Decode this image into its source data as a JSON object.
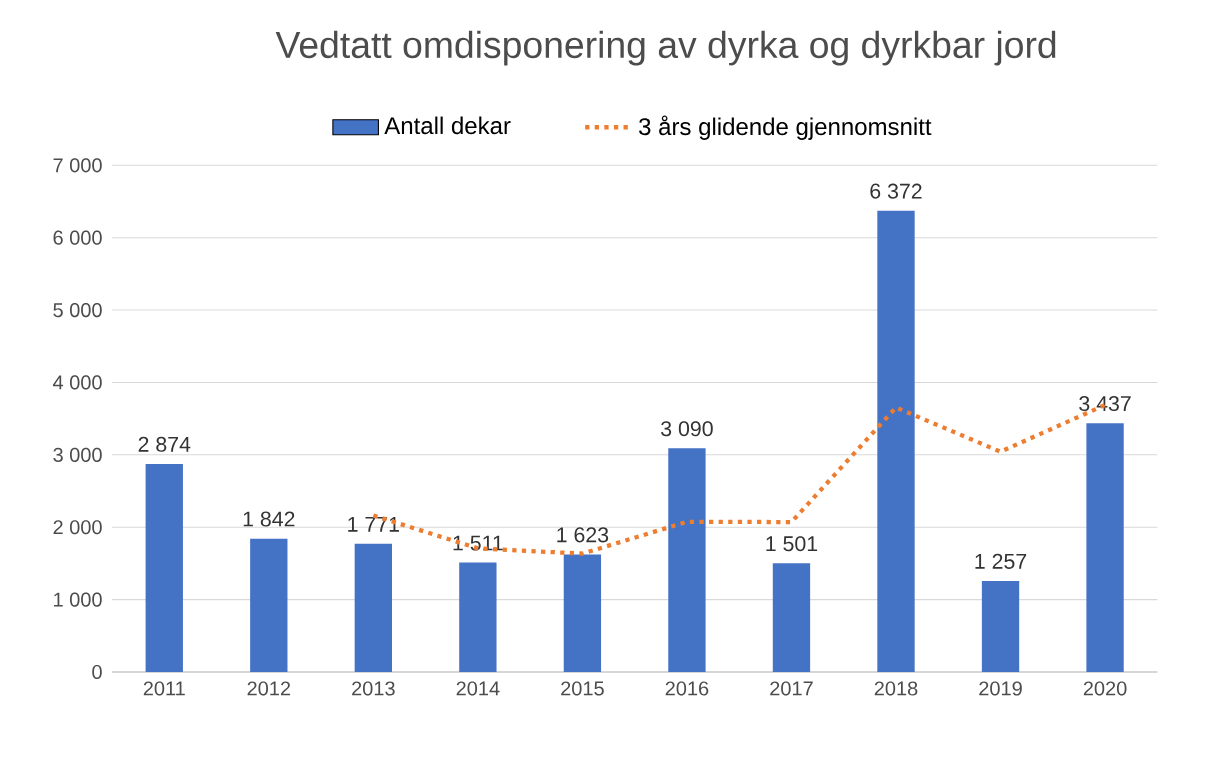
{
  "chart_data": {
    "type": "bar",
    "title": "Vedtatt omdisponering  av dyrka og dyrkbar jord",
    "categories": [
      "2011",
      "2012",
      "2013",
      "2014",
      "2015",
      "2016",
      "2017",
      "2018",
      "2019",
      "2020"
    ],
    "series": [
      {
        "name": "Antall dekar",
        "color": "#4472c4",
        "values": [
          2874,
          1842,
          1771,
          1511,
          1623,
          3090,
          1501,
          6372,
          1257,
          3437
        ],
        "value_labels": [
          "2 874",
          "1 842",
          "1 771",
          "1 511",
          "1 623",
          "3 090",
          "1 501",
          "6 372",
          "1 257",
          "3 437"
        ]
      },
      {
        "name": "3 års glidende gjennomsnitt",
        "type": "line",
        "color": "#ed7d31",
        "line_style": "dotted",
        "values": [
          null,
          null,
          2162,
          1708,
          1635,
          2075,
          2071,
          3654,
          3043,
          3689
        ]
      }
    ],
    "ylim": [
      0,
      7000
    ],
    "yticks": [
      {
        "value": 0,
        "label": "0"
      },
      {
        "value": 1000,
        "label": "1 000"
      },
      {
        "value": 2000,
        "label": "2 000"
      },
      {
        "value": 3000,
        "label": "3 000"
      },
      {
        "value": 4000,
        "label": "4 000"
      },
      {
        "value": 5000,
        "label": "5 000"
      },
      {
        "value": 6000,
        "label": "6 000"
      },
      {
        "value": 7000,
        "label": "7 000"
      }
    ],
    "grid": "y",
    "legend": "top"
  }
}
